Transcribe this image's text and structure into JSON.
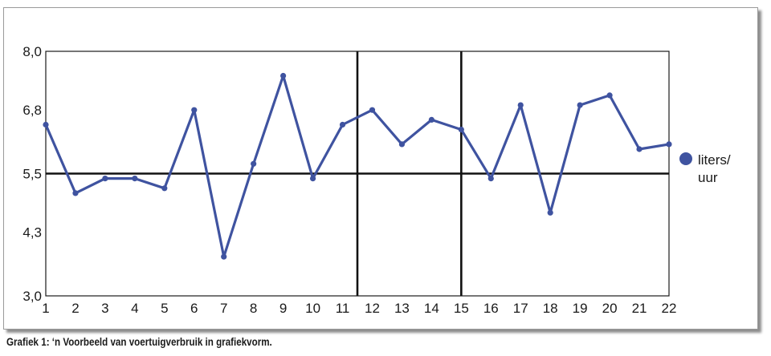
{
  "caption": "Grafiek 1: ‘n Voorbeeld van voertuigverbruik in grafiekvorm.",
  "chart_data": {
    "type": "line",
    "title": "",
    "xlabel": "",
    "ylabel": "",
    "x": [
      1,
      2,
      3,
      4,
      5,
      6,
      7,
      8,
      9,
      10,
      11,
      12,
      13,
      14,
      15,
      16,
      17,
      18,
      19,
      20,
      21,
      22
    ],
    "series": [
      {
        "name": "liters/ uur",
        "legend_lines": [
          "liters/",
          "uur"
        ],
        "color": "#3f53a0",
        "values": [
          6.5,
          5.1,
          5.4,
          5.4,
          5.2,
          6.8,
          3.8,
          5.7,
          7.5,
          5.4,
          6.5,
          6.8,
          6.1,
          6.6,
          6.4,
          5.4,
          6.9,
          4.7,
          6.9,
          7.1,
          6.0,
          6.1
        ]
      }
    ],
    "ylim": [
      3.0,
      8.0
    ],
    "yticks": [
      3.0,
      4.3,
      5.5,
      6.8,
      8.0
    ],
    "ytick_labels": [
      "3,0",
      "4,3",
      "5,5",
      "6,8",
      "8,0"
    ],
    "reference_lines": {
      "horizontal_y": 5.5,
      "vertical_x": [
        11.5,
        15
      ]
    },
    "grid": false,
    "legend_position": "right"
  }
}
